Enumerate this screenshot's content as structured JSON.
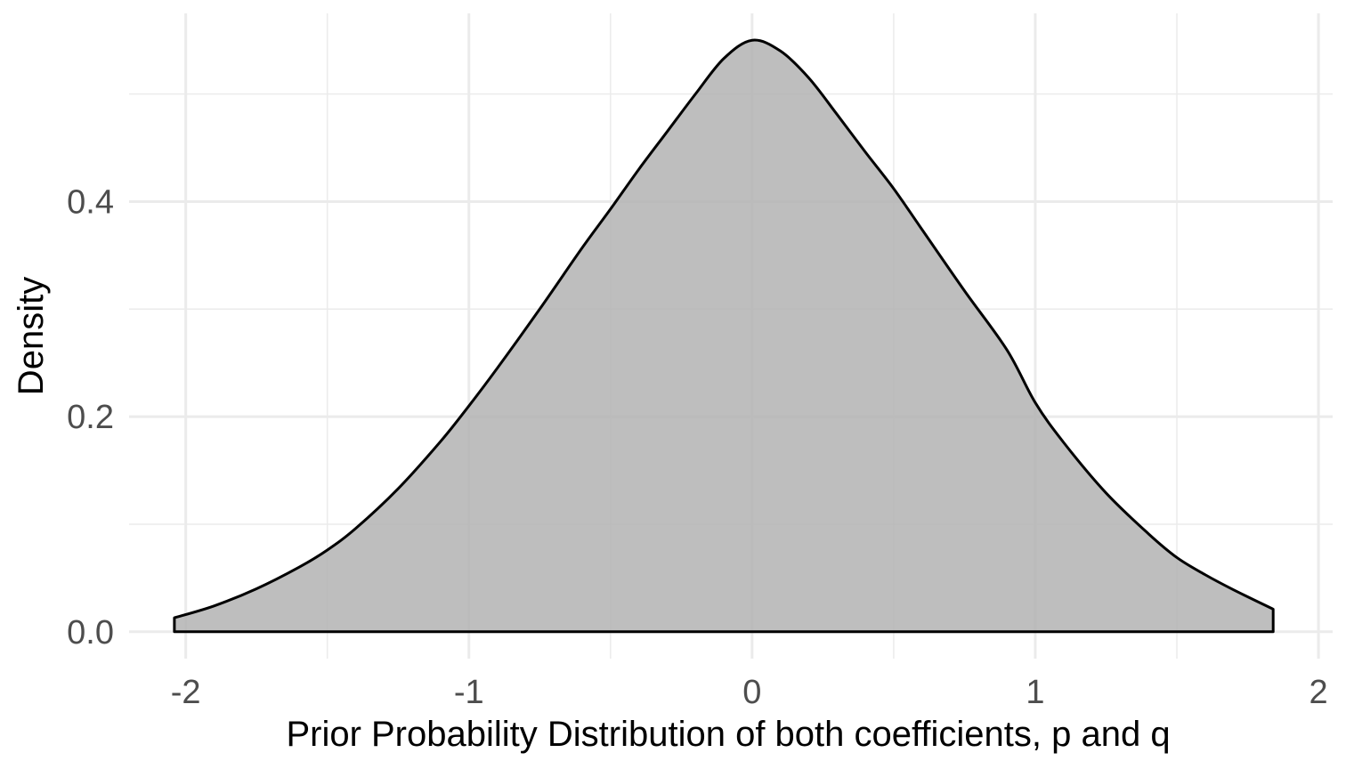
{
  "chart_data": {
    "type": "area",
    "title": "",
    "xlabel": "Prior Probability Distribution of both coefficients, p and q",
    "ylabel": "Density",
    "xlim": [
      -2.2,
      2.05
    ],
    "ylim": [
      -0.025,
      0.575
    ],
    "x_ticks": [
      -2,
      -1,
      0,
      1,
      2
    ],
    "x_tick_labels": [
      "-2",
      "-1",
      "0",
      "1",
      "2"
    ],
    "y_ticks": [
      0.0,
      0.2,
      0.4
    ],
    "y_tick_labels": [
      "0.0",
      "0.2",
      "0.4"
    ],
    "x_minor_grid": [
      -1.5,
      -0.5,
      0.5,
      1.5
    ],
    "y_minor_grid": [
      0.1,
      0.3,
      0.5
    ],
    "grid": true,
    "legend": "none",
    "series": [
      {
        "x": [
          -2.04,
          -1.9,
          -1.75,
          -1.6,
          -1.5,
          -1.4,
          -1.25,
          -1.1,
          -1.0,
          -0.9,
          -0.75,
          -0.6,
          -0.5,
          -0.4,
          -0.3,
          -0.2,
          -0.1,
          0.0,
          0.1,
          0.2,
          0.3,
          0.4,
          0.5,
          0.6,
          0.75,
          0.9,
          1.0,
          1.1,
          1.25,
          1.4,
          1.5,
          1.6,
          1.7,
          1.84
        ],
        "density": [
          0.013,
          0.024,
          0.04,
          0.06,
          0.076,
          0.096,
          0.133,
          0.177,
          0.21,
          0.245,
          0.3,
          0.357,
          0.393,
          0.43,
          0.465,
          0.5,
          0.533,
          0.55,
          0.54,
          0.515,
          0.481,
          0.446,
          0.412,
          0.374,
          0.317,
          0.262,
          0.213,
          0.176,
          0.129,
          0.091,
          0.069,
          0.053,
          0.039,
          0.021
        ],
        "fill": "#b3b3b3",
        "line_color": "#000000"
      }
    ],
    "colors": {
      "background": "#ffffff",
      "major_grid": "#ebebeb",
      "minor_grid": "#ebebeb",
      "tick_text": "#4d4d4d",
      "axis_title": "#000000"
    }
  }
}
